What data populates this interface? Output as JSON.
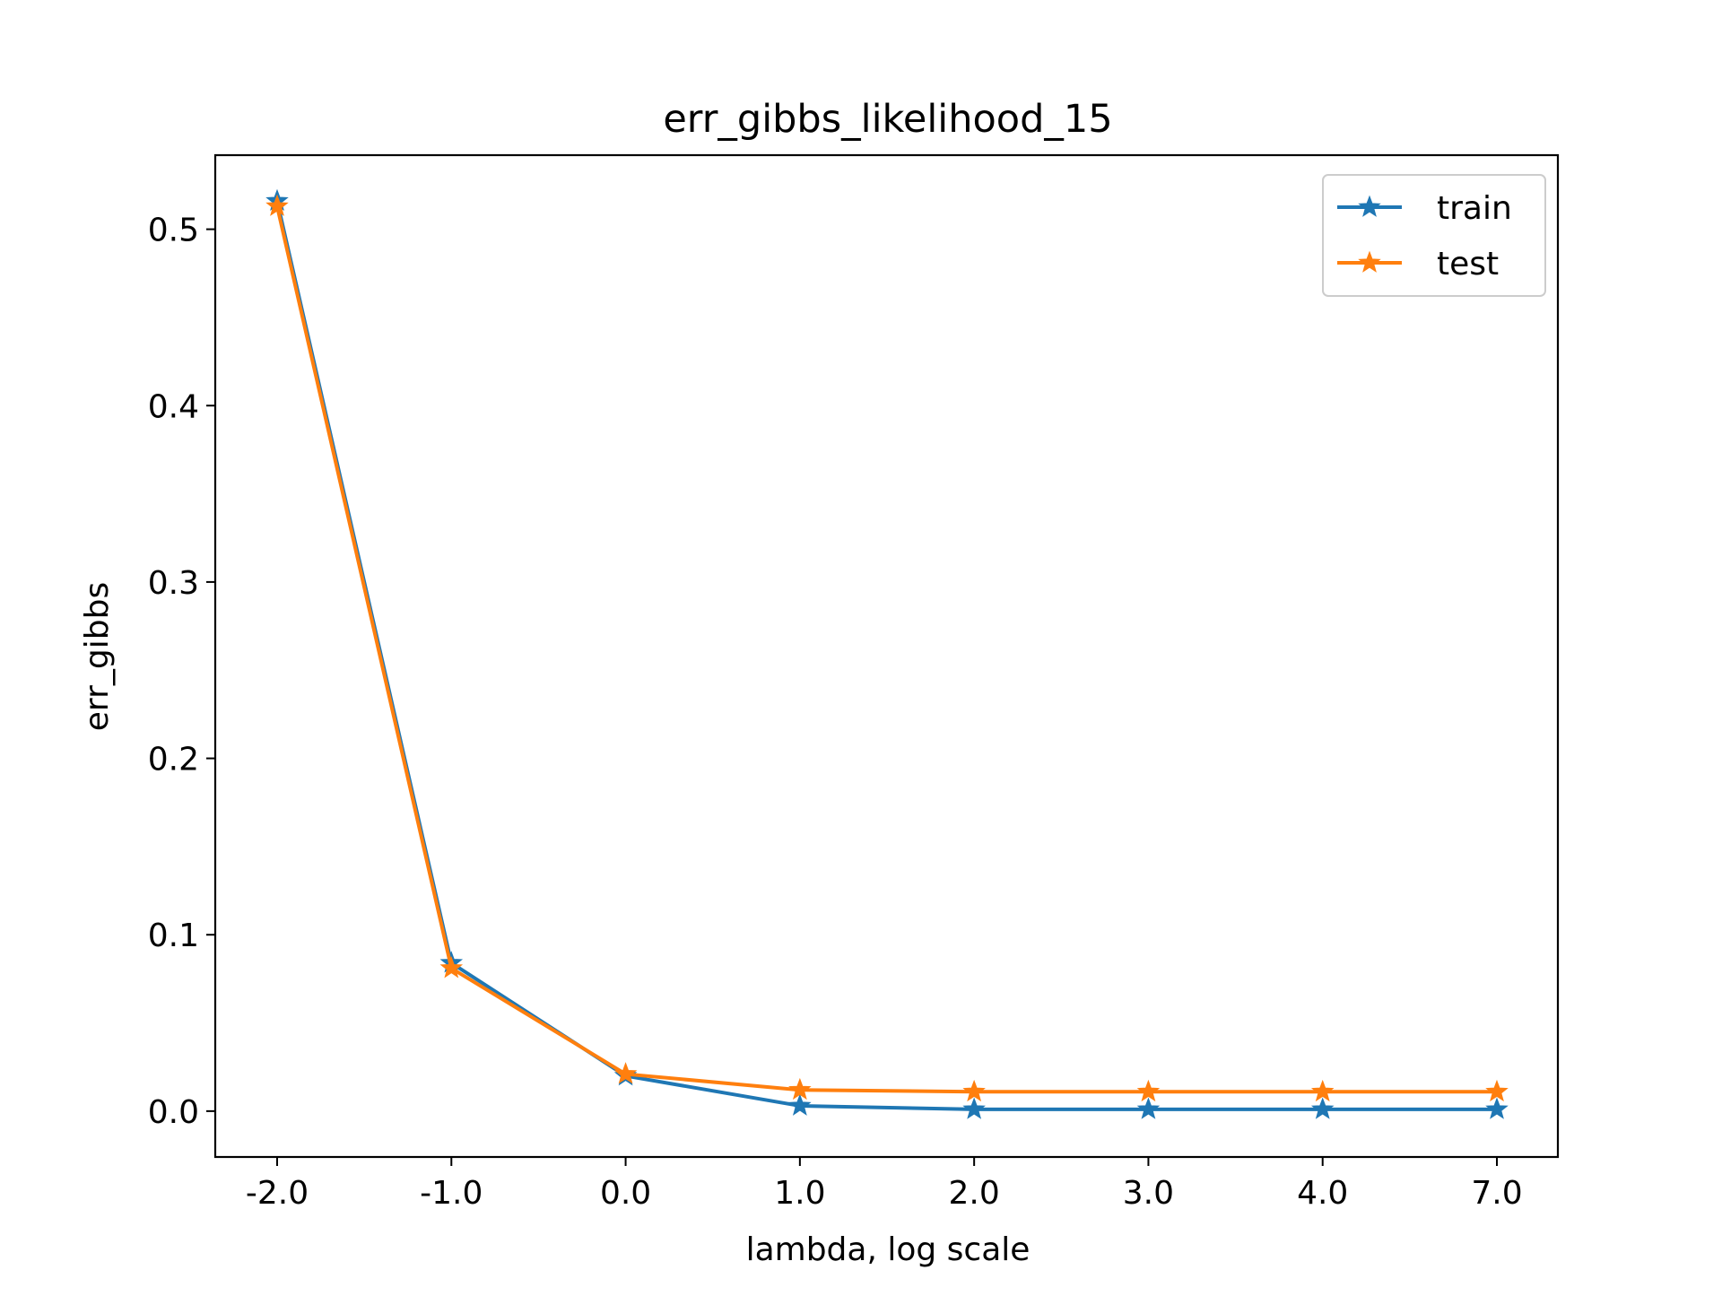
{
  "chart_data": {
    "type": "line",
    "title": "err_gibbs_likelihood_15",
    "xlabel": "lambda, log scale",
    "ylabel": "err_gibbs",
    "x_tick_labels": [
      "-2.0",
      "-1.0",
      "0.0",
      "1.0",
      "2.0",
      "3.0",
      "4.0",
      "7.0"
    ],
    "y_ticks": [
      0.0,
      0.1,
      0.2,
      0.3,
      0.4,
      0.5
    ],
    "y_tick_labels": [
      "0.0",
      "0.1",
      "0.2",
      "0.3",
      "0.4",
      "0.5"
    ],
    "ylim": [
      -0.026,
      0.542
    ],
    "grid": false,
    "legend_position": "top-right",
    "marker": "star",
    "series": [
      {
        "name": "train",
        "color": "#1f77b4",
        "values": [
          0.516,
          0.084,
          0.02,
          0.003,
          0.001,
          0.001,
          0.001,
          0.001
        ]
      },
      {
        "name": "test",
        "color": "#ff7f0e",
        "values": [
          0.513,
          0.081,
          0.021,
          0.012,
          0.011,
          0.011,
          0.011,
          0.011
        ]
      }
    ]
  }
}
